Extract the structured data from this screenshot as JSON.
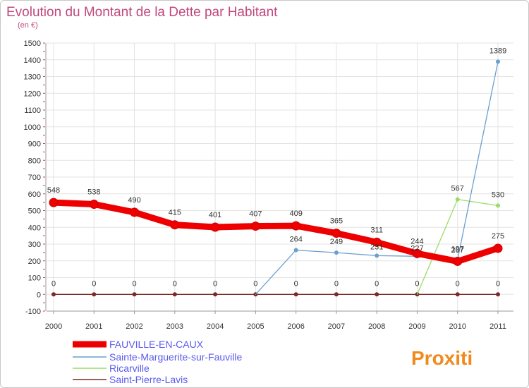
{
  "chart_data": {
    "type": "line",
    "title": "Evolution du Montant de la Dette par Habitant",
    "subtitle": "(en €)",
    "x": [
      "2000",
      "2001",
      "2002",
      "2003",
      "2004",
      "2005",
      "2006",
      "2007",
      "2008",
      "2009",
      "2010",
      "2011"
    ],
    "ylim": [
      -100,
      1500
    ],
    "yticks": [
      -100,
      0,
      100,
      200,
      300,
      400,
      500,
      600,
      700,
      800,
      900,
      1000,
      1100,
      1200,
      1300,
      1400,
      1500
    ],
    "grid": true,
    "legend_position": "bottom-left",
    "series": [
      {
        "name": "FAUVILLE-EN-CAUX",
        "color": "#ee0000",
        "values": [
          548,
          538,
          490,
          415,
          401,
          407,
          409,
          365,
          311,
          244,
          197,
          275
        ],
        "labels": [
          "548",
          "538",
          "490",
          "415",
          "401",
          "407",
          "409",
          "365",
          "311",
          "244",
          "197",
          "275"
        ]
      },
      {
        "name": "Sainte-Marguerite-sur-Fauville",
        "color": "#6a9fd0",
        "values": [
          0,
          0,
          0,
          0,
          0,
          0,
          264,
          249,
          231,
          227,
          207,
          1389
        ],
        "labels": [
          "",
          "",
          "",
          "",
          "",
          "",
          "264",
          "249",
          "231",
          "227",
          "207",
          "1389"
        ]
      },
      {
        "name": "Ricarville",
        "color": "#99dd66",
        "values": [
          0,
          0,
          0,
          0,
          0,
          0,
          0,
          0,
          0,
          0,
          567,
          530
        ],
        "labels": [
          "",
          "",
          "",
          "",
          "",
          "",
          "",
          "",
          "",
          "",
          "567",
          "530"
        ]
      },
      {
        "name": "Saint-Pierre-Lavis",
        "color": "#7a2a2a",
        "values": [
          0,
          0,
          0,
          0,
          0,
          0,
          0,
          0,
          0,
          0,
          0,
          0
        ],
        "labels": [
          "0",
          "0",
          "0",
          "0",
          "0",
          "0",
          "0",
          "0",
          "0",
          "0",
          "0",
          "0"
        ]
      }
    ]
  },
  "logo": {
    "text": "Proxiti"
  }
}
